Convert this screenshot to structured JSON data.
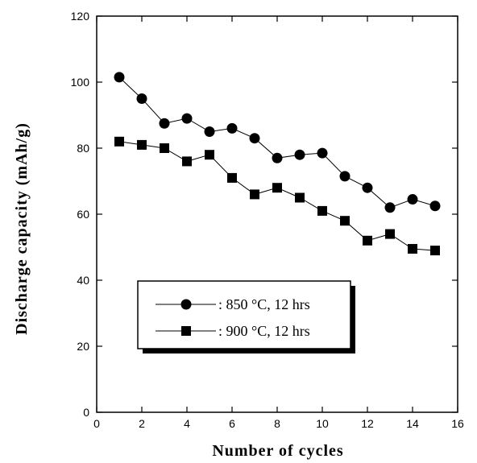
{
  "chart_data": {
    "type": "line",
    "title": "",
    "xlabel": "Number of cycles",
    "ylabel": "Discharge capacity  (mAh/g)",
    "xlim": [
      0,
      16
    ],
    "ylim": [
      0,
      120
    ],
    "x_ticks": [
      0,
      2,
      4,
      6,
      8,
      10,
      12,
      14,
      16
    ],
    "y_ticks": [
      0,
      20,
      40,
      60,
      80,
      100,
      120
    ],
    "grid": false,
    "legend_position": "lower-left",
    "x": [
      1,
      2,
      3,
      4,
      5,
      6,
      7,
      8,
      9,
      10,
      11,
      12,
      13,
      14,
      15
    ],
    "series": [
      {
        "name": ": 850 °C, 12 hrs",
        "marker": "circle",
        "values": [
          101.5,
          95,
          87.5,
          89,
          85,
          86,
          83,
          77,
          78,
          78.5,
          71.5,
          68,
          62,
          64.5,
          62.5
        ]
      },
      {
        "name": ": 900 °C, 12 hrs",
        "marker": "square",
        "values": [
          82,
          81,
          80,
          76,
          78,
          71,
          66,
          68,
          65,
          61,
          58,
          52,
          54,
          49.5,
          49
        ]
      }
    ]
  }
}
